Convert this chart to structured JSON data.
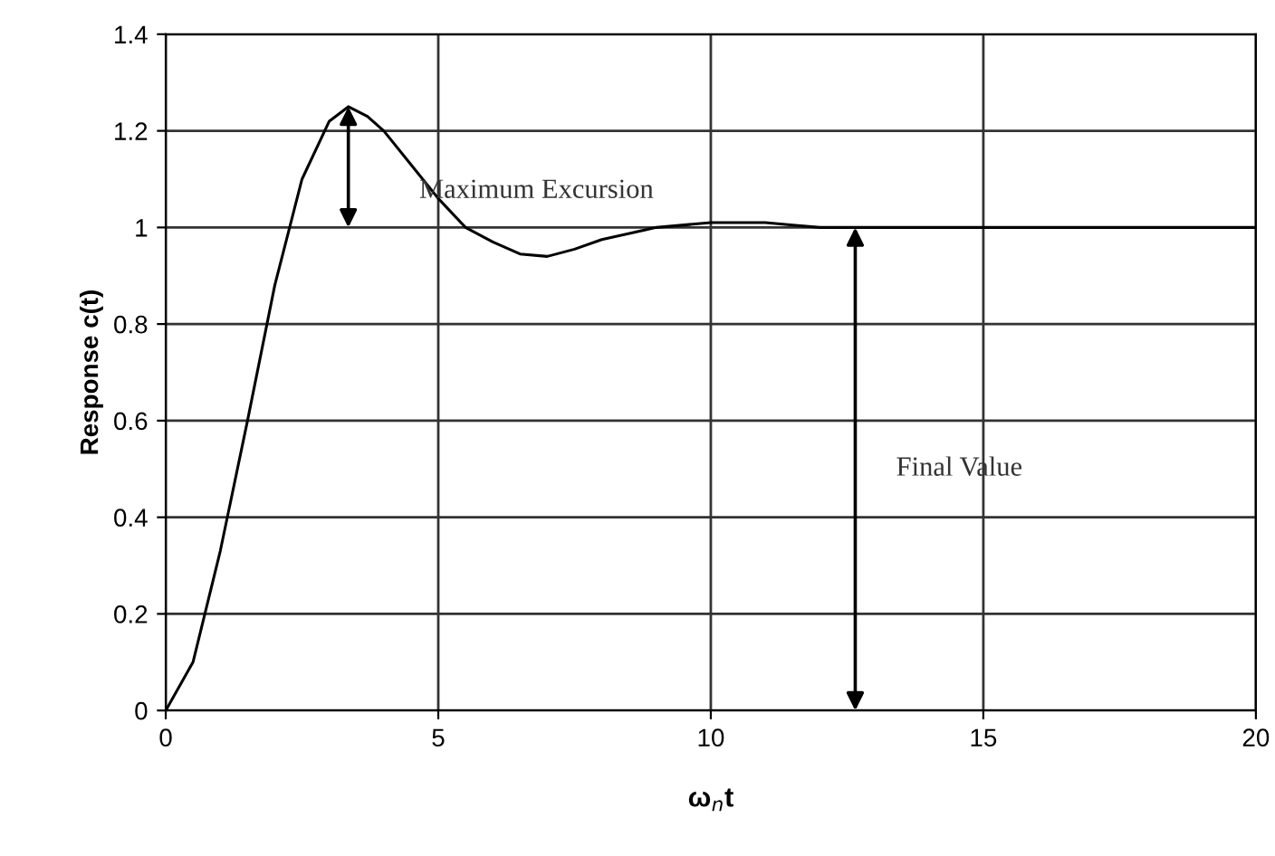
{
  "chart_data": {
    "type": "line",
    "xlabel": "ω$_{n}$t",
    "ylabel": "Response c(t)",
    "x": [
      0,
      0.5,
      1,
      1.5,
      2,
      2.5,
      3,
      3.35,
      3.7,
      4,
      4.5,
      5,
      5.5,
      6,
      6.5,
      7,
      7.5,
      8,
      9,
      10,
      11,
      11.5,
      12,
      13,
      15,
      20
    ],
    "series": [
      {
        "color": "#000000",
        "values": [
          0,
          0.1,
          0.33,
          0.6,
          0.88,
          1.1,
          1.22,
          1.25,
          1.23,
          1.2,
          1.13,
          1.06,
          1.0,
          0.97,
          0.945,
          0.94,
          0.955,
          0.975,
          1.0,
          1.01,
          1.01,
          1.005,
          1.0,
          1.0,
          1.0,
          1.0
        ]
      }
    ],
    "annotations": [
      "Maximum Excursion",
      "Final Value"
    ],
    "xlim": [
      0,
      20
    ],
    "xticks": [
      0,
      5,
      10,
      15,
      20
    ],
    "ylim": [
      0,
      1.4
    ],
    "yticks": [
      0,
      0.2,
      0.4,
      0.6,
      0.8,
      1,
      1.2,
      1.4
    ],
    "grid": true,
    "marker": "none",
    "line_style": "solid"
  }
}
